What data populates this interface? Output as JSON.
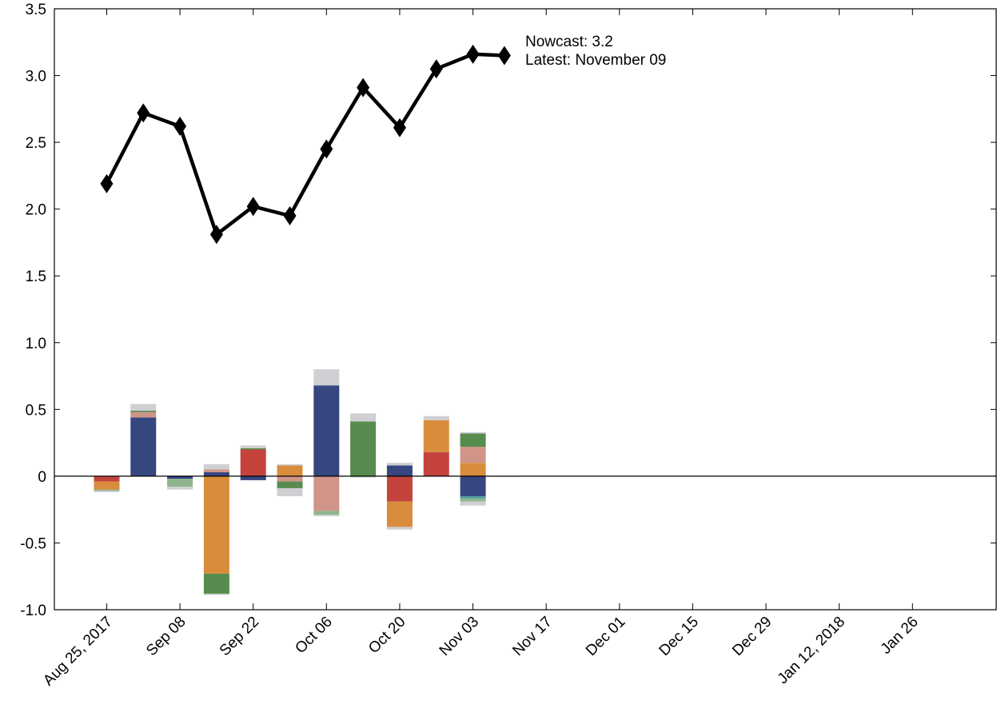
{
  "chart_data": {
    "type": "bar",
    "ylim": [
      -1.0,
      3.5
    ],
    "y_ticks": [
      "-1.0",
      "-0.5",
      "0",
      "0.5",
      "1.0",
      "1.5",
      "2.0",
      "2.5",
      "3.0",
      "3.5"
    ],
    "y_tick_values": [
      -1.0,
      -0.5,
      0,
      0.5,
      1.0,
      1.5,
      2.0,
      2.5,
      3.0,
      3.5
    ],
    "x_tick_labels": [
      "Aug 25, 2017",
      "Sep 08",
      "Sep 22",
      "Oct 06",
      "Oct 20",
      "Nov 03",
      "Nov 17",
      "Dec 01",
      "Dec 15",
      "Dec 29",
      "Jan 12, 2018",
      "Jan 26"
    ],
    "x_tick_dates": [
      "2017-08-25",
      "2017-09-08",
      "2017-09-22",
      "2017-10-06",
      "2017-10-20",
      "2017-11-03",
      "2017-11-17",
      "2017-12-01",
      "2017-12-15",
      "2017-12-29",
      "2018-01-12",
      "2018-01-26"
    ],
    "xlim": [
      "2017-08-15",
      "2018-02-11"
    ],
    "grid": false,
    "annotation": {
      "nowcast_label": "Nowcast:  3.2",
      "latest_label": "Latest: November 09"
    },
    "nowcast_series": {
      "dates": [
        "2017-08-25",
        "2017-09-01",
        "2017-09-08",
        "2017-09-15",
        "2017-09-22",
        "2017-09-29",
        "2017-10-06",
        "2017-10-13",
        "2017-10-20",
        "2017-10-27",
        "2017-11-03",
        "2017-11-09"
      ],
      "values": [
        2.19,
        2.72,
        2.62,
        1.81,
        2.02,
        1.95,
        2.45,
        2.91,
        2.61,
        3.05,
        3.16,
        3.15
      ],
      "color": "#000000"
    },
    "bar_colors": {
      "blue": "#36467f",
      "pink": "#d09488",
      "green": "#568c4d",
      "red": "#c4433d",
      "orange": "#d98c3c",
      "lightgreen": "#8fb48d",
      "teal": "#5aa0a0",
      "gray": "#cfcfd4"
    },
    "bars": [
      {
        "date": "2017-08-25",
        "segments": [
          {
            "color": "red",
            "value": -0.04
          },
          {
            "color": "orange",
            "value": -0.06
          },
          {
            "color": "lightgreen",
            "value": -0.01
          },
          {
            "color": "gray",
            "value": -0.01
          }
        ]
      },
      {
        "date": "2017-09-01",
        "segments": [
          {
            "color": "blue",
            "value": 0.44
          },
          {
            "color": "pink",
            "value": 0.04
          },
          {
            "color": "green",
            "value": 0.01
          },
          {
            "color": "gray",
            "value": 0.05
          }
        ]
      },
      {
        "date": "2017-09-08",
        "segments": [
          {
            "color": "blue",
            "value": -0.02
          },
          {
            "color": "lightgreen",
            "value": -0.06
          },
          {
            "color": "gray",
            "value": -0.02
          }
        ]
      },
      {
        "date": "2017-09-15",
        "segments": [
          {
            "color": "blue",
            "value": 0.03
          },
          {
            "color": "pink",
            "value": 0.02
          },
          {
            "color": "gray",
            "value": 0.04
          },
          {
            "color": "orange",
            "value": -0.73
          },
          {
            "color": "green",
            "value": -0.15
          },
          {
            "color": "gray",
            "value": -0.01
          }
        ]
      },
      {
        "date": "2017-09-22",
        "segments": [
          {
            "color": "red",
            "value": 0.2
          },
          {
            "color": "green",
            "value": 0.01
          },
          {
            "color": "gray",
            "value": 0.02
          },
          {
            "color": "blue",
            "value": -0.03
          }
        ]
      },
      {
        "date": "2017-09-29",
        "segments": [
          {
            "color": "orange",
            "value": 0.08
          },
          {
            "color": "gray",
            "value": 0.01
          },
          {
            "color": "pink",
            "value": -0.04
          },
          {
            "color": "green",
            "value": -0.05
          },
          {
            "color": "gray",
            "value": -0.06
          }
        ]
      },
      {
        "date": "2017-10-06",
        "segments": [
          {
            "color": "blue",
            "value": 0.68
          },
          {
            "color": "gray",
            "value": 0.12
          },
          {
            "color": "pink",
            "value": -0.26
          },
          {
            "color": "lightgreen",
            "value": -0.03
          },
          {
            "color": "gray",
            "value": -0.01
          }
        ]
      },
      {
        "date": "2017-10-13",
        "segments": [
          {
            "color": "green",
            "value": 0.41
          },
          {
            "color": "gray",
            "value": 0.06
          },
          {
            "color": "gray",
            "value": -0.01
          }
        ]
      },
      {
        "date": "2017-10-20",
        "segments": [
          {
            "color": "blue",
            "value": 0.08
          },
          {
            "color": "gray",
            "value": 0.02
          },
          {
            "color": "red",
            "value": -0.19
          },
          {
            "color": "orange",
            "value": -0.19
          },
          {
            "color": "gray",
            "value": -0.02
          }
        ]
      },
      {
        "date": "2017-10-27",
        "segments": [
          {
            "color": "red",
            "value": 0.18
          },
          {
            "color": "orange",
            "value": 0.24
          },
          {
            "color": "gray",
            "value": 0.03
          }
        ]
      },
      {
        "date": "2017-11-03",
        "segments": [
          {
            "color": "orange",
            "value": 0.1
          },
          {
            "color": "pink",
            "value": 0.12
          },
          {
            "color": "green",
            "value": 0.1
          },
          {
            "color": "gray",
            "value": 0.01
          },
          {
            "color": "blue",
            "value": -0.15
          },
          {
            "color": "teal",
            "value": -0.02
          },
          {
            "color": "lightgreen",
            "value": -0.02
          },
          {
            "color": "gray",
            "value": -0.03
          }
        ]
      },
      {
        "date": "2017-11-09",
        "segments": [
          {
            "color": "gray",
            "value": -0.005
          }
        ]
      }
    ]
  }
}
